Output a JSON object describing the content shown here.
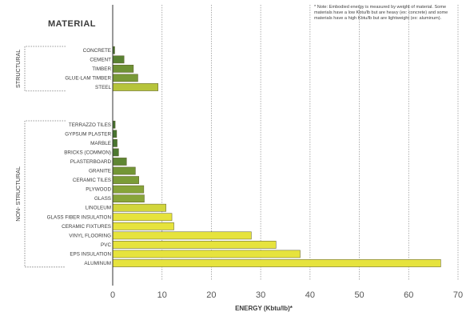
{
  "heading": "MATERIAL",
  "note": "* Note: Embodied energy is measured by weight of material. Some materials have a low Kbtu/lb but are heavy (ex: concrete) and some materials have a high Kbtu/lb but are lightweight (ex: aluminum).",
  "chart_data": {
    "type": "bar",
    "orientation": "horizontal",
    "title": "MATERIAL",
    "xlabel": "ENERGY (Kbtu/lb)*",
    "ylabel": "",
    "xlim": [
      0,
      70
    ],
    "xticks": [
      0,
      10,
      20,
      30,
      40,
      50,
      60,
      70
    ],
    "grid": "vertical dotted",
    "groups": [
      {
        "label": "STRUCTURAL",
        "categories": [
          "CONCRETE",
          "CEMENT",
          "TIMBER",
          "GLUE-LAM TIMBER",
          "STEEL"
        ],
        "values": [
          0.4,
          2.3,
          4.2,
          5.1,
          9.2
        ]
      },
      {
        "label": "NON- STRUCTURAL",
        "categories": [
          "TERRAZZO TILES",
          "GYPSUM PLASTER",
          "MARBLE",
          "BRICKS (COMMON)",
          "PLASTERBOARD",
          "GRANITE",
          "CERAMIC TILES",
          "PLYWOOD",
          "GLASS",
          "LINOLEUM",
          "GLASS FIBER INSULATION",
          "CERAMIC FIXTURES",
          "VINYL FLOORING",
          "PVC",
          "EPS INSULATION",
          "ALUMINUM"
        ],
        "values": [
          0.5,
          0.8,
          0.9,
          1.2,
          2.8,
          4.6,
          5.3,
          6.3,
          6.4,
          10.8,
          12.0,
          12.4,
          28.1,
          33.1,
          38.0,
          66.5
        ]
      }
    ],
    "colors": {
      "low": "#3f6e2d",
      "mid": "#8aa73a",
      "high": "#e6e33d",
      "peak": "#f4f13a",
      "axis": "#333333",
      "grid": "#999999"
    }
  }
}
